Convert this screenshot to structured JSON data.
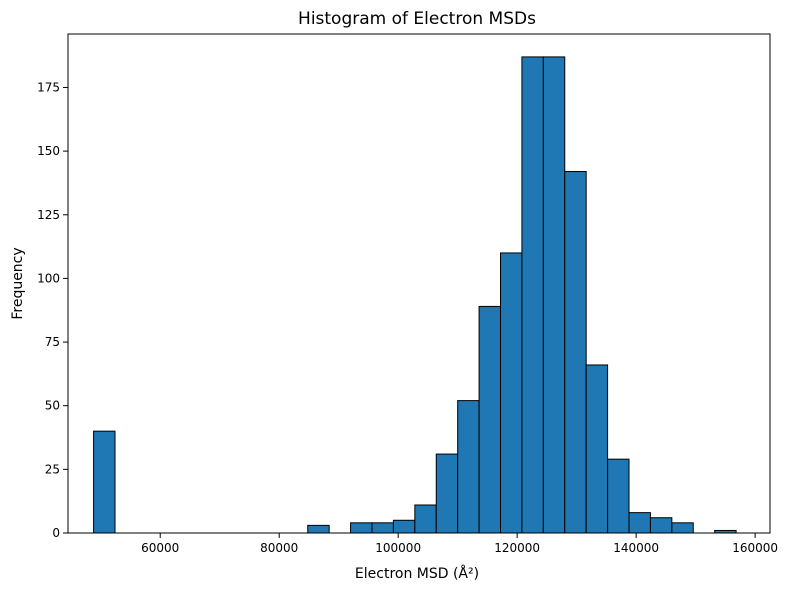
{
  "chart_data": {
    "type": "bar",
    "title": "Histogram of Electron MSDs",
    "xlabel": "Electron MSD (Å²)",
    "ylabel": "Frequency",
    "xlim": [
      44500,
      162500
    ],
    "ylim": [
      0,
      196
    ],
    "bin_width": 3600,
    "xticks": [
      60000,
      80000,
      100000,
      120000,
      140000,
      160000
    ],
    "yticks": [
      0,
      25,
      50,
      75,
      100,
      125,
      150,
      175
    ],
    "bars": [
      {
        "x0": 48800,
        "count": 40
      },
      {
        "x0": 52400,
        "count": 0
      },
      {
        "x0": 56000,
        "count": 0
      },
      {
        "x0": 59600,
        "count": 0
      },
      {
        "x0": 63200,
        "count": 0
      },
      {
        "x0": 66800,
        "count": 0
      },
      {
        "x0": 70400,
        "count": 0
      },
      {
        "x0": 74000,
        "count": 0
      },
      {
        "x0": 77600,
        "count": 0
      },
      {
        "x0": 81200,
        "count": 0
      },
      {
        "x0": 84800,
        "count": 3
      },
      {
        "x0": 88400,
        "count": 0
      },
      {
        "x0": 92000,
        "count": 4
      },
      {
        "x0": 95600,
        "count": 4
      },
      {
        "x0": 99200,
        "count": 5
      },
      {
        "x0": 102800,
        "count": 11
      },
      {
        "x0": 106400,
        "count": 31
      },
      {
        "x0": 110000,
        "count": 52
      },
      {
        "x0": 113600,
        "count": 89
      },
      {
        "x0": 117200,
        "count": 110
      },
      {
        "x0": 120800,
        "count": 187
      },
      {
        "x0": 124400,
        "count": 187
      },
      {
        "x0": 128000,
        "count": 142
      },
      {
        "x0": 131600,
        "count": 66
      },
      {
        "x0": 135200,
        "count": 29
      },
      {
        "x0": 138800,
        "count": 8
      },
      {
        "x0": 142400,
        "count": 6
      },
      {
        "x0": 146000,
        "count": 4
      },
      {
        "x0": 149600,
        "count": 0
      },
      {
        "x0": 153200,
        "count": 1
      }
    ],
    "bar_color": "#1f77b4",
    "edge_color": "#000000",
    "grid": false,
    "legend": "none"
  }
}
